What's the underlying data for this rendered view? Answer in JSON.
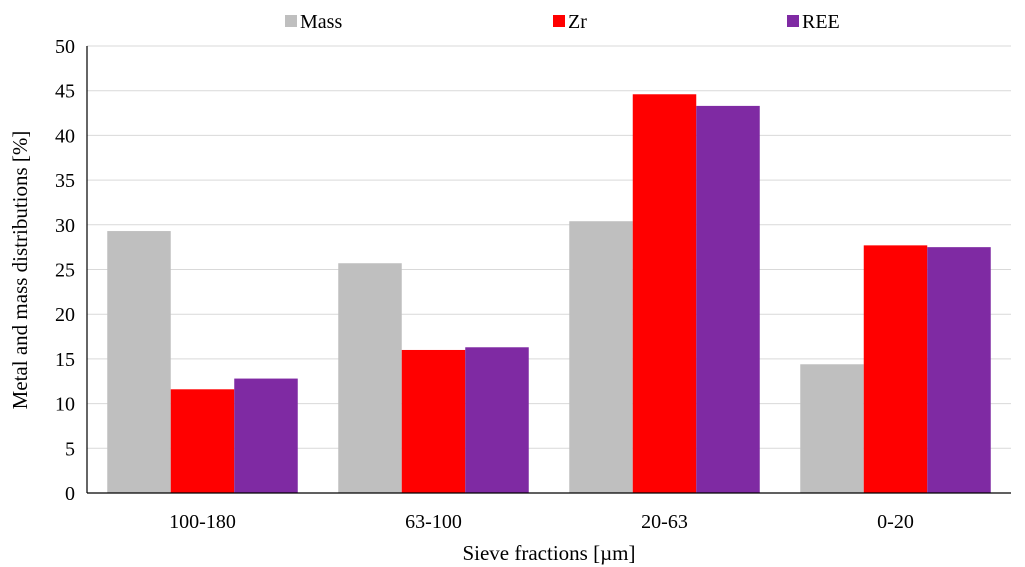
{
  "chart_data": {
    "type": "bar",
    "categories": [
      "100-180",
      "63-100",
      "20-63",
      "0-20"
    ],
    "series": [
      {
        "name": "Mass",
        "color": "#bfbfbf",
        "values": [
          29.3,
          25.7,
          30.4,
          14.4
        ]
      },
      {
        "name": "Zr",
        "color": "#ff0000",
        "values": [
          11.6,
          16.0,
          44.6,
          27.7
        ]
      },
      {
        "name": "REE",
        "color": "#7f2aa3",
        "values": [
          12.8,
          16.3,
          43.3,
          27.5
        ]
      }
    ],
    "xlabel": "Sieve fractions [µm]",
    "ylabel": "Metal and mass distributions [%]",
    "ylim": [
      0,
      50
    ],
    "yticks": [
      0,
      5,
      10,
      15,
      20,
      25,
      30,
      35,
      40,
      45,
      50
    ],
    "grid": true,
    "legend_position": "top"
  }
}
